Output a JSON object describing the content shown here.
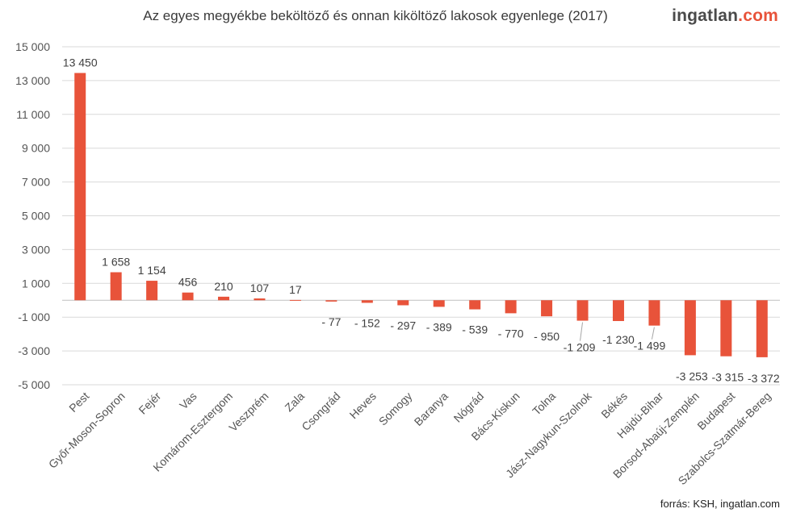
{
  "header": {
    "title": "Az egyes megyékbe beköltöző és onnan kiköltöző lakosok egyenlege  (2017)",
    "brand_main": "ingatlan",
    "brand_tld": ".com"
  },
  "footer": {
    "source": "forrás: KSH, ingatlan.com"
  },
  "colors": {
    "bar": "#e8533a",
    "gridline": "#d9d9d9",
    "baseline": "#bfbfbf"
  },
  "chart_data": {
    "type": "bar",
    "title": "Az egyes megyékbe beköltöző és onnan kiköltöző lakosok egyenlege  (2017)",
    "xlabel": "",
    "ylabel": "",
    "ylim": [
      -5000,
      15000
    ],
    "yticks": [
      15000,
      13000,
      11000,
      9000,
      7000,
      5000,
      3000,
      1000,
      -1000,
      -3000,
      -5000
    ],
    "ytick_labels": [
      "15 000",
      "13 000",
      "11 000",
      "9 000",
      "7 000",
      "5 000",
      "3 000",
      "1 000",
      "-1 000",
      "-3 000",
      "-5 000"
    ],
    "grid": true,
    "categories": [
      "Pest",
      "Győr-Moson-Sopron",
      "Fejér",
      "Vas",
      "Komárom-Esztergom",
      "Veszprém",
      "Zala",
      "Csongrád",
      "Heves",
      "Somogy",
      "Baranya",
      "Nógrád",
      "Bács-Kiskun",
      "Tolna",
      "Jász-Nagykun-Szolnok",
      "Békés",
      "Hajdú-Bihar",
      "Borsod-Abaúj-Zemplén",
      "Budapest",
      "Szabolcs-Szatmár-Bereg"
    ],
    "values": [
      13450,
      1658,
      1154,
      456,
      210,
      107,
      17,
      -77,
      -152,
      -297,
      -389,
      -539,
      -770,
      -950,
      -1209,
      -1230,
      -1499,
      -3253,
      -3315,
      -3372
    ],
    "value_labels": [
      "13 450",
      "1 658",
      "1 154",
      "456",
      "210",
      "107",
      "17",
      "- 77",
      "- 152",
      "- 297",
      "- 389",
      "- 539",
      "- 770",
      "- 950",
      "-1 209",
      "-1 230",
      "-1 499",
      "-3 253",
      "-3 315",
      "-3 372"
    ]
  }
}
